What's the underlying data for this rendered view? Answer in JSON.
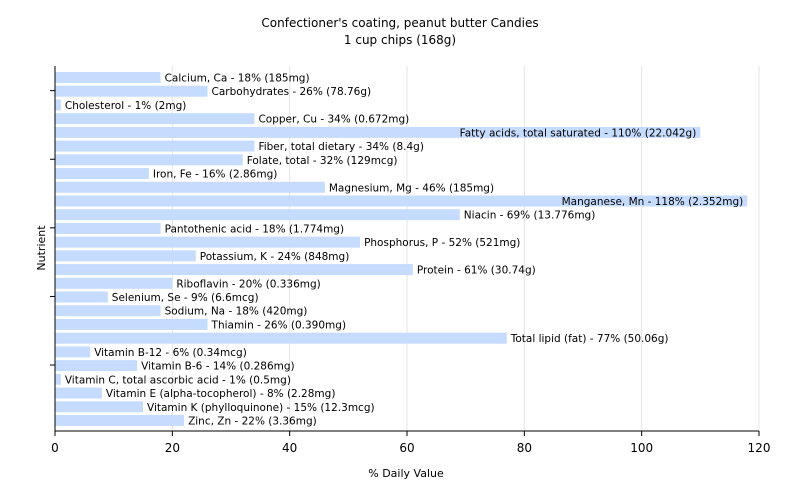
{
  "chart_data": {
    "type": "bar",
    "orientation": "horizontal",
    "title": "Confectioner's coating, peanut butter Candies",
    "subtitle": "1 cup chips (168g)",
    "xlabel": "% Daily Value",
    "ylabel": "Nutrient",
    "xlim": [
      0,
      120
    ],
    "xticks": [
      "0",
      "20",
      "40",
      "60",
      "80",
      "100",
      "120"
    ],
    "grid": "vertical",
    "bar_color": "#c6dcff",
    "categories": [
      "Calcium, Ca",
      "Carbohydrates",
      "Cholesterol",
      "Copper, Cu",
      "Fatty acids, total saturated",
      "Fiber, total dietary",
      "Folate, total",
      "Iron, Fe",
      "Magnesium, Mg",
      "Manganese, Mn",
      "Niacin",
      "Pantothenic acid",
      "Phosphorus, P",
      "Potassium, K",
      "Protein",
      "Riboflavin",
      "Selenium, Se",
      "Sodium, Na",
      "Thiamin",
      "Total lipid (fat)",
      "Vitamin B-12",
      "Vitamin B-6",
      "Vitamin C, total ascorbic acid",
      "Vitamin E (alpha-tocopherol)",
      "Vitamin K (phylloquinone)",
      "Zinc, Zn"
    ],
    "values": [
      18,
      26,
      1,
      34,
      110,
      34,
      32,
      16,
      46,
      118,
      69,
      18,
      52,
      24,
      61,
      20,
      9,
      18,
      26,
      77,
      6,
      14,
      1,
      8,
      15,
      22
    ],
    "labels": [
      "Calcium, Ca - 18% (185mg)",
      "Carbohydrates - 26% (78.76g)",
      "Cholesterol - 1% (2mg)",
      "Copper, Cu - 34% (0.672mg)",
      "Fatty acids, total saturated - 110% (22.042g)",
      "Fiber, total dietary - 34% (8.4g)",
      "Folate, total - 32% (129mcg)",
      "Iron, Fe - 16% (2.86mg)",
      "Magnesium, Mg - 46% (185mg)",
      "Manganese, Mn - 118% (2.352mg)",
      "Niacin - 69% (13.776mg)",
      "Pantothenic acid - 18% (1.774mg)",
      "Phosphorus, P - 52% (521mg)",
      "Potassium, K - 24% (848mg)",
      "Protein - 61% (30.74g)",
      "Riboflavin - 20% (0.336mg)",
      "Selenium, Se - 9% (6.6mcg)",
      "Sodium, Na - 18% (420mg)",
      "Thiamin - 26% (0.390mg)",
      "Total lipid (fat) - 77% (50.06g)",
      "Vitamin B-12 - 6% (0.34mcg)",
      "Vitamin B-6 - 14% (0.286mg)",
      "Vitamin C, total ascorbic acid - 1% (0.5mg)",
      "Vitamin E (alpha-tocopherol) - 8% (2.28mg)",
      "Vitamin K (phylloquinone) - 15% (12.3mcg)",
      "Zinc, Zn - 22% (3.36mg)"
    ]
  }
}
